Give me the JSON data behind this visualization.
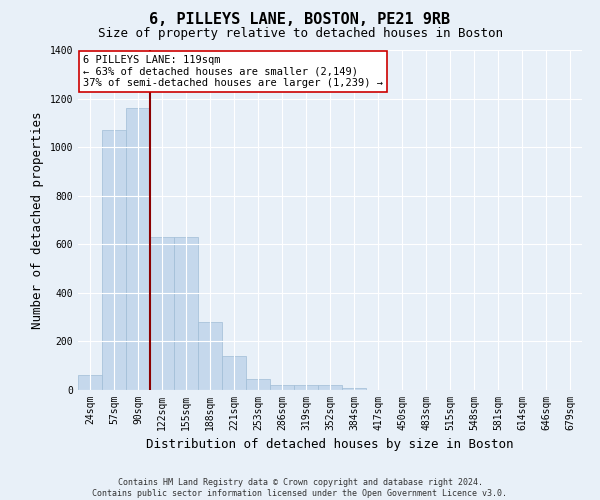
{
  "title": "6, PILLEYS LANE, BOSTON, PE21 9RB",
  "subtitle": "Size of property relative to detached houses in Boston",
  "xlabel": "Distribution of detached houses by size in Boston",
  "ylabel": "Number of detached properties",
  "categories": [
    "24sqm",
    "57sqm",
    "90sqm",
    "122sqm",
    "155sqm",
    "188sqm",
    "221sqm",
    "253sqm",
    "286sqm",
    "319sqm",
    "352sqm",
    "384sqm",
    "417sqm",
    "450sqm",
    "483sqm",
    "515sqm",
    "548sqm",
    "581sqm",
    "614sqm",
    "646sqm",
    "679sqm"
  ],
  "values": [
    60,
    1070,
    1160,
    630,
    630,
    280,
    140,
    45,
    20,
    20,
    20,
    10,
    0,
    0,
    0,
    0,
    0,
    0,
    0,
    0,
    0
  ],
  "bar_color": "#c5d8ec",
  "bar_edge_color": "#a0bdd6",
  "vline_x_index": 2.5,
  "vline_color": "#8b0000",
  "annotation_text": "6 PILLEYS LANE: 119sqm\n← 63% of detached houses are smaller (2,149)\n37% of semi-detached houses are larger (1,239) →",
  "annotation_box_color": "#ffffff",
  "annotation_box_edge": "#cc0000",
  "ylim": [
    0,
    1400
  ],
  "yticks": [
    0,
    200,
    400,
    600,
    800,
    1000,
    1200,
    1400
  ],
  "bg_color": "#e8f0f8",
  "grid_color": "#ffffff",
  "title_fontsize": 11,
  "subtitle_fontsize": 9,
  "ylabel_fontsize": 9,
  "xlabel_fontsize": 9,
  "tick_fontsize": 7,
  "annotation_fontsize": 7.5,
  "footer_fontsize": 6,
  "footer": "Contains HM Land Registry data © Crown copyright and database right 2024.\nContains public sector information licensed under the Open Government Licence v3.0."
}
